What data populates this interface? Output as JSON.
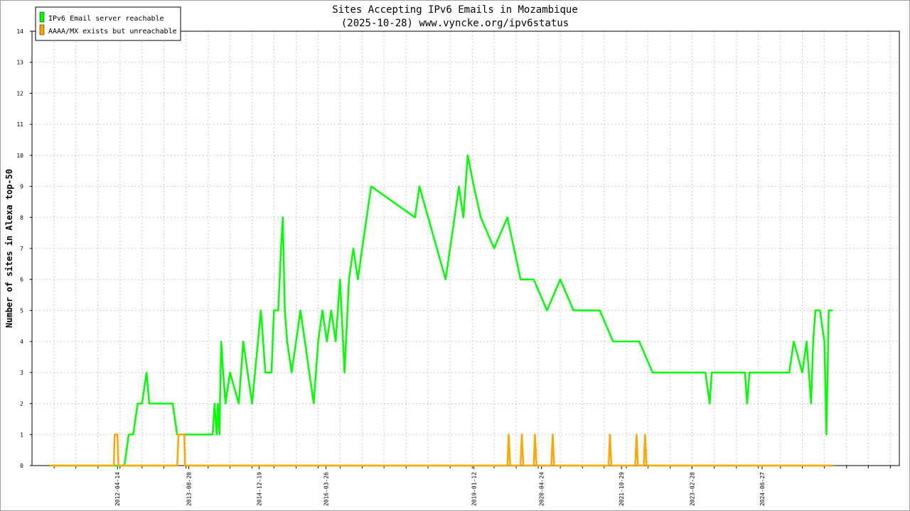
{
  "chart_data": {
    "type": "line",
    "title": "Sites Accepting IPv6 Emails in Mozambique",
    "subtitle": "(2025-10-28) www.vyncke.org/ipv6status",
    "xlabel": "",
    "ylabel": "Number of sites in Alexa top-50",
    "ylim": [
      0,
      14
    ],
    "xlim": [
      "2010-09-01",
      "2027-02-01"
    ],
    "grid": true,
    "legend_position": "top-left",
    "y_ticks": [
      "0",
      "1",
      "2",
      "3",
      "4",
      "5",
      "6",
      "7",
      "8",
      "9",
      "10",
      "11",
      "12",
      "13",
      "14"
    ],
    "x_tick_labels": [
      {
        "date": "2012-04-14",
        "label": "2012-04-14"
      },
      {
        "date": "2013-08-20",
        "label": "2013-08-20"
      },
      {
        "date": "2014-12-19",
        "label": "2014-12-19"
      },
      {
        "date": "2016-03-26",
        "label": "2016-03-26"
      },
      {
        "date": "2019-01-12",
        "label": "2019-01-12"
      },
      {
        "date": "2020-04-24",
        "label": "2020-04-24"
      },
      {
        "date": "2021-10-29",
        "label": "2021-10-29"
      },
      {
        "date": "2023-02-28",
        "label": "2023-02-28"
      },
      {
        "date": "2024-06-27",
        "label": "2024-06-27"
      }
    ],
    "series": [
      {
        "name": "IPv6 Email server reachable",
        "color": "#00ff00",
        "points": [
          [
            "2011-01-01",
            0
          ],
          [
            "2012-06-01",
            0
          ],
          [
            "2012-07-01",
            1
          ],
          [
            "2012-08-01",
            1
          ],
          [
            "2012-09-01",
            2
          ],
          [
            "2012-10-01",
            2
          ],
          [
            "2012-11-01",
            3
          ],
          [
            "2012-11-20",
            2
          ],
          [
            "2013-05-01",
            2
          ],
          [
            "2013-06-01",
            1
          ],
          [
            "2014-02-01",
            1
          ],
          [
            "2014-02-15",
            2
          ],
          [
            "2014-03-01",
            1
          ],
          [
            "2014-03-10",
            2
          ],
          [
            "2014-03-20",
            1
          ],
          [
            "2014-04-01",
            4
          ],
          [
            "2014-04-15",
            3
          ],
          [
            "2014-05-01",
            2
          ],
          [
            "2014-06-01",
            3
          ],
          [
            "2014-08-01",
            2
          ],
          [
            "2014-09-01",
            4
          ],
          [
            "2014-10-01",
            3
          ],
          [
            "2014-11-01",
            2
          ],
          [
            "2015-01-01",
            5
          ],
          [
            "2015-02-01",
            3
          ],
          [
            "2015-03-15",
            3
          ],
          [
            "2015-04-01",
            5
          ],
          [
            "2015-05-01",
            5
          ],
          [
            "2015-05-20",
            7
          ],
          [
            "2015-06-01",
            8
          ],
          [
            "2015-06-15",
            5
          ],
          [
            "2015-07-01",
            4
          ],
          [
            "2015-08-01",
            3
          ],
          [
            "2015-09-01",
            4
          ],
          [
            "2015-10-01",
            5
          ],
          [
            "2015-11-01",
            4
          ],
          [
            "2015-12-01",
            3
          ],
          [
            "2016-01-01",
            2
          ],
          [
            "2016-02-01",
            4
          ],
          [
            "2016-03-01",
            5
          ],
          [
            "2016-04-01",
            4
          ],
          [
            "2016-05-01",
            5
          ],
          [
            "2016-06-01",
            4
          ],
          [
            "2016-07-01",
            6
          ],
          [
            "2016-08-01",
            3
          ],
          [
            "2016-09-01",
            6
          ],
          [
            "2016-10-01",
            7
          ],
          [
            "2016-11-01",
            6
          ],
          [
            "2017-01-01",
            8
          ],
          [
            "2017-02-01",
            9
          ],
          [
            "2017-12-01",
            8
          ],
          [
            "2018-01-01",
            9
          ],
          [
            "2018-07-01",
            6
          ],
          [
            "2018-08-01",
            7
          ],
          [
            "2018-09-01",
            8
          ],
          [
            "2018-10-01",
            9
          ],
          [
            "2018-11-01",
            8
          ],
          [
            "2018-12-01",
            10
          ],
          [
            "2019-01-12",
            9
          ],
          [
            "2019-03-01",
            8
          ],
          [
            "2019-06-01",
            7
          ],
          [
            "2019-09-01",
            8
          ],
          [
            "2019-12-01",
            6
          ],
          [
            "2020-03-01",
            6
          ],
          [
            "2020-06-01",
            5
          ],
          [
            "2020-09-01",
            6
          ],
          [
            "2020-12-01",
            5
          ],
          [
            "2021-03-01",
            5
          ],
          [
            "2021-06-01",
            5
          ],
          [
            "2021-09-01",
            4
          ],
          [
            "2021-12-01",
            4
          ],
          [
            "2022-03-01",
            4
          ],
          [
            "2022-06-01",
            3
          ],
          [
            "2022-09-01",
            3
          ],
          [
            "2022-11-01",
            3
          ],
          [
            "2023-01-01",
            3
          ],
          [
            "2023-06-01",
            3
          ],
          [
            "2023-07-01",
            2
          ],
          [
            "2023-07-15",
            3
          ],
          [
            "2024-03-01",
            3
          ],
          [
            "2024-03-15",
            2
          ],
          [
            "2024-04-01",
            3
          ],
          [
            "2025-01-01",
            3
          ],
          [
            "2025-02-01",
            4
          ],
          [
            "2025-04-01",
            3
          ],
          [
            "2025-05-01",
            4
          ],
          [
            "2025-06-01",
            2
          ],
          [
            "2025-06-15",
            4
          ],
          [
            "2025-07-01",
            5
          ],
          [
            "2025-08-01",
            5
          ],
          [
            "2025-09-01",
            4
          ],
          [
            "2025-09-15",
            1
          ],
          [
            "2025-10-01",
            5
          ],
          [
            "2025-10-28",
            5
          ]
        ]
      },
      {
        "name": "AAAA/MX exists but unreachable",
        "color": "#ffa500",
        "points": [
          [
            "2011-01-01",
            0
          ],
          [
            "2012-03-20",
            0
          ],
          [
            "2012-03-25",
            1
          ],
          [
            "2012-04-14",
            1
          ],
          [
            "2012-04-20",
            0
          ],
          [
            "2013-06-01",
            0
          ],
          [
            "2013-06-10",
            1
          ],
          [
            "2013-07-20",
            1
          ],
          [
            "2013-07-25",
            0
          ],
          [
            "2019-09-01",
            0
          ],
          [
            "2019-09-10",
            1
          ],
          [
            "2019-09-20",
            0
          ],
          [
            "2019-12-01",
            0
          ],
          [
            "2019-12-10",
            1
          ],
          [
            "2019-12-20",
            0
          ],
          [
            "2020-03-01",
            0
          ],
          [
            "2020-03-10",
            1
          ],
          [
            "2020-03-20",
            0
          ],
          [
            "2020-07-01",
            0
          ],
          [
            "2020-07-10",
            1
          ],
          [
            "2020-07-20",
            0
          ],
          [
            "2021-08-01",
            0
          ],
          [
            "2021-08-10",
            1
          ],
          [
            "2021-08-20",
            0
          ],
          [
            "2022-02-01",
            0
          ],
          [
            "2022-02-10",
            1
          ],
          [
            "2022-02-20",
            0
          ],
          [
            "2022-04-01",
            0
          ],
          [
            "2022-04-10",
            1
          ],
          [
            "2022-04-20",
            0
          ],
          [
            "2025-10-28",
            0
          ]
        ]
      }
    ]
  }
}
